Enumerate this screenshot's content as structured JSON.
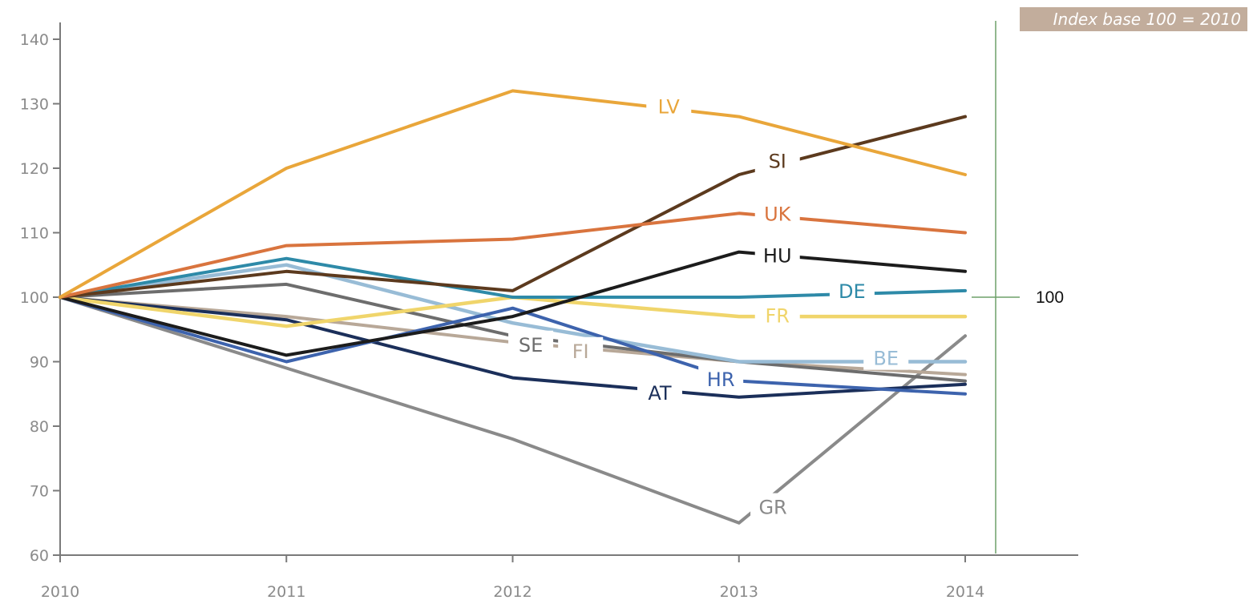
{
  "chart_data": {
    "type": "line",
    "title": "",
    "xlabel": "",
    "ylabel": "",
    "x": [
      "2010",
      "2011",
      "2012",
      "2013",
      "2014"
    ],
    "ylim": [
      60,
      140
    ],
    "yticks": [
      "60",
      "70",
      "80",
      "90",
      "100",
      "110",
      "120",
      "130",
      "140"
    ],
    "grid": false,
    "legend": "inline labels",
    "annotation": "Index base 100 = 2010",
    "reference_line": {
      "value": "100"
    },
    "series": [
      {
        "name": "GR",
        "color": "#8a8a8a",
        "values": [
          100,
          89,
          78,
          65,
          94
        ],
        "label_at": [
          2013.15,
          67.5
        ]
      },
      {
        "name": "FI",
        "color": "#b8a898",
        "values": [
          100,
          97,
          93,
          90,
          88
        ],
        "label_at": [
          2012.3,
          91.7
        ]
      },
      {
        "name": "SE",
        "color": "#6d6d6d",
        "values": [
          100,
          102,
          94,
          90,
          87
        ],
        "label_at": [
          2012.08,
          92.7
        ]
      },
      {
        "name": "BE",
        "color": "#98bcd6",
        "values": [
          100,
          105,
          96,
          90,
          90
        ],
        "label_at": [
          2013.65,
          90.6
        ]
      },
      {
        "name": "AT",
        "color": "#1b2f5a",
        "values": [
          100,
          96.5,
          87.5,
          84.5,
          86.5
        ],
        "label_at": [
          2012.65,
          85.2
        ]
      },
      {
        "name": "HR",
        "color": "#3d63ad",
        "values": [
          100,
          90,
          98.3,
          87,
          85
        ],
        "label_at": [
          2012.92,
          87.3
        ]
      },
      {
        "name": "FR",
        "color": "#f0d56b",
        "values": [
          100,
          95.5,
          100,
          97,
          97
        ],
        "label_at": [
          2013.17,
          97.2
        ]
      },
      {
        "name": "DE",
        "color": "#2e8aa8",
        "values": [
          100,
          106,
          100,
          100,
          101
        ],
        "label_at": [
          2013.5,
          101
        ]
      },
      {
        "name": "HU",
        "color": "#1c1c1c",
        "values": [
          100,
          91,
          97,
          107,
          104
        ],
        "label_at": [
          2013.17,
          106.5
        ]
      },
      {
        "name": "SI",
        "color": "#5c3a1e",
        "values": [
          100,
          104,
          101,
          119,
          128
        ],
        "label_at": [
          2013.17,
          121.2
        ]
      },
      {
        "name": "UK",
        "color": "#d9743e",
        "values": [
          100,
          108,
          109,
          113,
          110
        ],
        "label_at": [
          2013.17,
          113
        ]
      },
      {
        "name": "LV",
        "color": "#e9a63a",
        "values": [
          100,
          120,
          132,
          128,
          119
        ],
        "label_at": [
          2012.69,
          129.6
        ]
      }
    ]
  }
}
